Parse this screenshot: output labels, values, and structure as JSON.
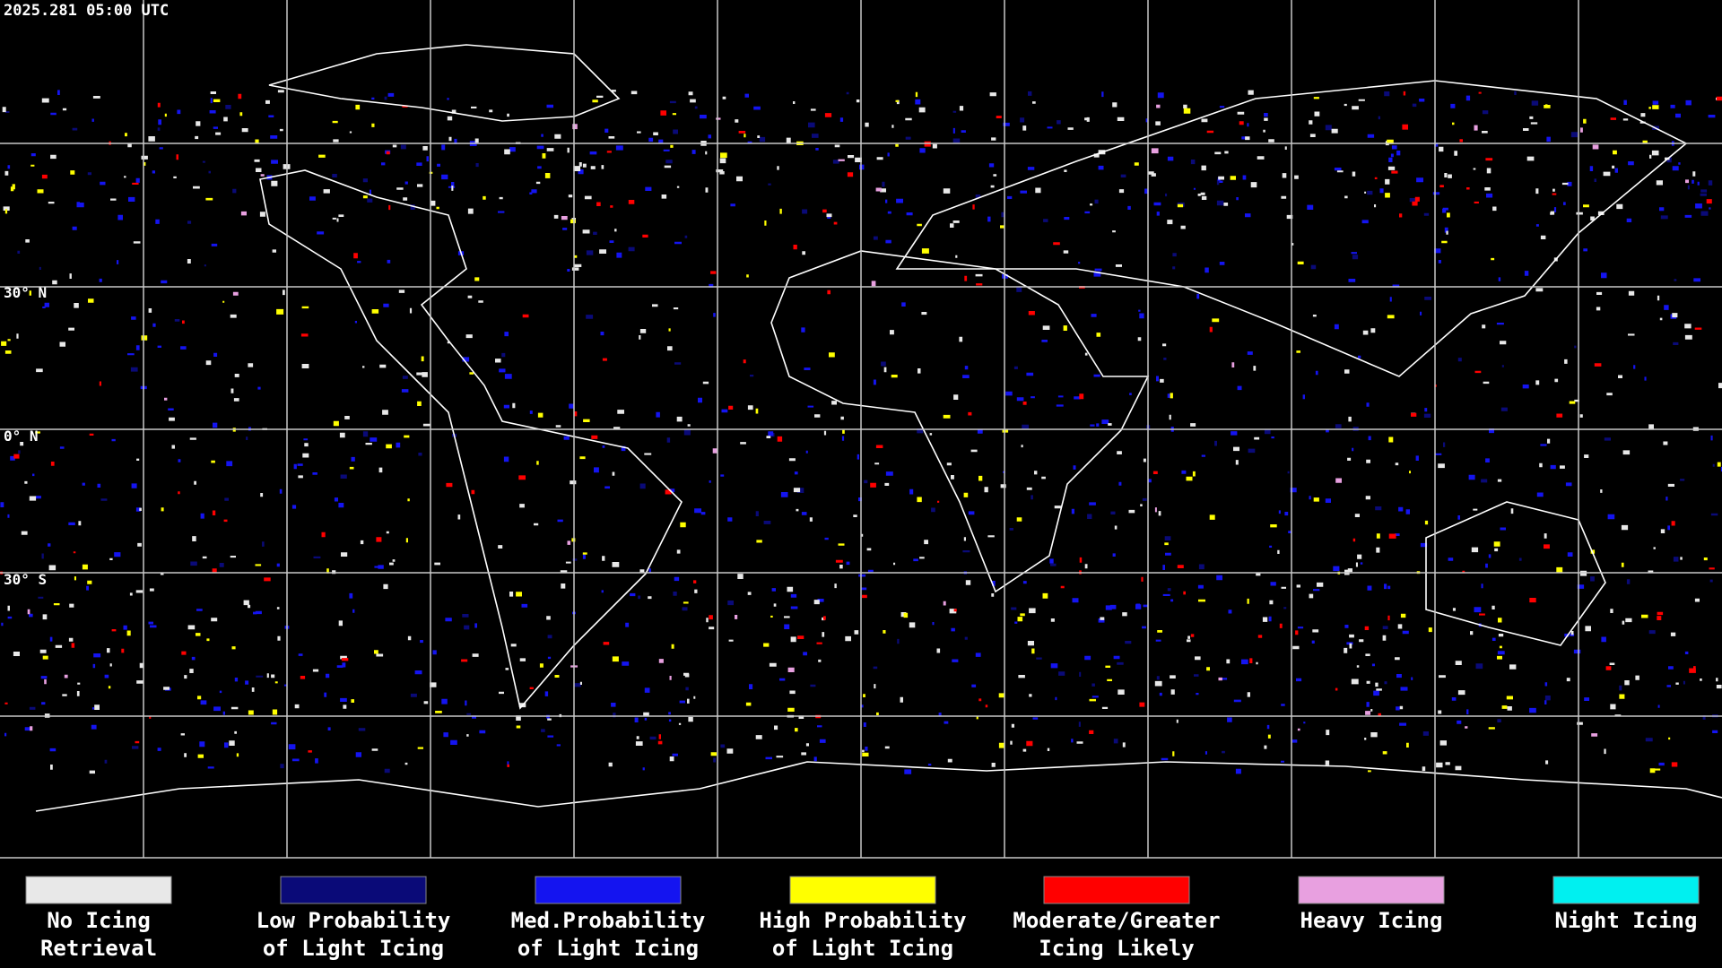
{
  "header": {
    "timestamp": "2025.281 05:00 UTC"
  },
  "map": {
    "latitude_labels": [
      "30° N",
      "0° N",
      "30° S"
    ]
  },
  "legend": [
    {
      "color": "#e8e8e8",
      "lines": [
        "No Icing",
        "Retrieval"
      ]
    },
    {
      "color": "#0a0a78",
      "lines": [
        "Low Probability",
        "of Light Icing"
      ]
    },
    {
      "color": "#1414f0",
      "lines": [
        "Med.Probability",
        "of Light Icing"
      ]
    },
    {
      "color": "#ffff00",
      "lines": [
        "High Probability",
        "of Light Icing"
      ]
    },
    {
      "color": "#ff0000",
      "lines": [
        "Moderate/Greater",
        "Icing Likely"
      ]
    },
    {
      "color": "#e8a0e0",
      "lines": [
        "Heavy Icing"
      ]
    },
    {
      "color": "#00f0f0",
      "lines": [
        "Night Icing"
      ]
    }
  ]
}
